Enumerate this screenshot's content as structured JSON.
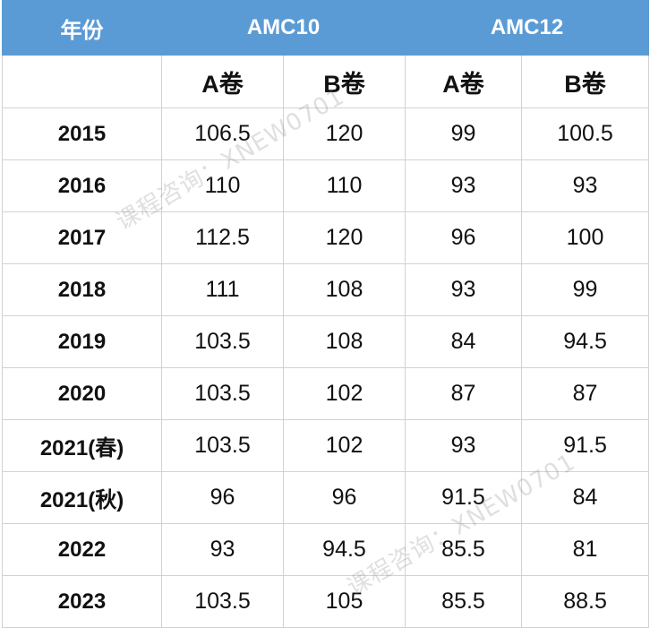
{
  "header": {
    "year": "年份",
    "amc10": "AMC10",
    "amc12": "AMC12"
  },
  "subheader": {
    "amc10_a": "A卷",
    "amc10_b": "B卷",
    "amc12_a": "A卷",
    "amc12_b": "B卷"
  },
  "rows": [
    {
      "year": "2015",
      "amc10_a": "106.5",
      "amc10_b": "120",
      "amc12_a": "99",
      "amc12_b": "100.5"
    },
    {
      "year": "2016",
      "amc10_a": "110",
      "amc10_b": "110",
      "amc12_a": "93",
      "amc12_b": "93"
    },
    {
      "year": "2017",
      "amc10_a": "112.5",
      "amc10_b": "120",
      "amc12_a": "96",
      "amc12_b": "100"
    },
    {
      "year": "2018",
      "amc10_a": "111",
      "amc10_b": "108",
      "amc12_a": "93",
      "amc12_b": "99"
    },
    {
      "year": "2019",
      "amc10_a": "103.5",
      "amc10_b": "108",
      "amc12_a": "84",
      "amc12_b": "94.5"
    },
    {
      "year": "2020",
      "amc10_a": "103.5",
      "amc10_b": "102",
      "amc12_a": "87",
      "amc12_b": "87"
    },
    {
      "year": "2021(春)",
      "amc10_a": "103.5",
      "amc10_b": "102",
      "amc12_a": "93",
      "amc12_b": "91.5"
    },
    {
      "year": "2021(秋)",
      "amc10_a": "96",
      "amc10_b": "96",
      "amc12_a": "91.5",
      "amc12_b": "84"
    },
    {
      "year": "2022",
      "amc10_a": "93",
      "amc10_b": "94.5",
      "amc12_a": "85.5",
      "amc12_b": "81"
    },
    {
      "year": "2023",
      "amc10_a": "103.5",
      "amc10_b": "105",
      "amc12_a": "85.5",
      "amc12_b": "88.5"
    }
  ],
  "watermark": "课程咨询：XNEW0701"
}
